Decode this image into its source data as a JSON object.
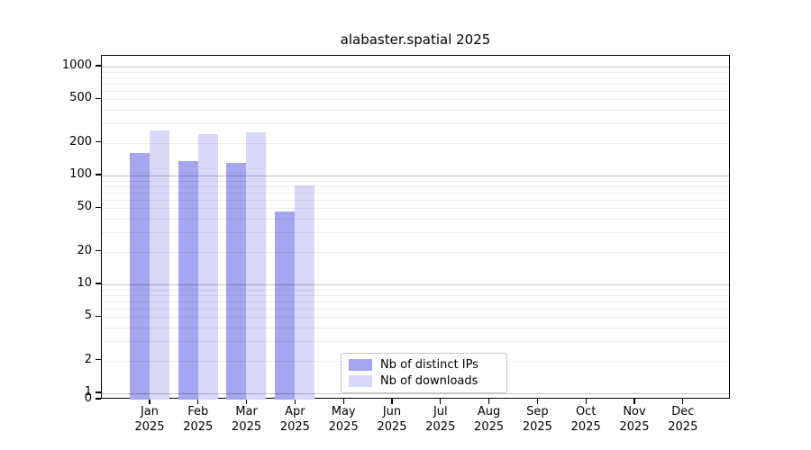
{
  "chart_data": {
    "type": "bar",
    "title": "alabaster.spatial 2025",
    "categories": [
      "Jan",
      "Feb",
      "Mar",
      "Apr",
      "May",
      "Jun",
      "Jul",
      "Aug",
      "Sep",
      "Oct",
      "Nov",
      "Dec"
    ],
    "year_label": "2025",
    "series": [
      {
        "name": "Nb of distinct IPs",
        "color": "#a5a5f0",
        "values": [
          160,
          135,
          130,
          47,
          null,
          null,
          null,
          null,
          null,
          null,
          null,
          null
        ]
      },
      {
        "name": "Nb of downloads",
        "color": "#d8d8f9",
        "values": [
          260,
          240,
          250,
          81,
          null,
          null,
          null,
          null,
          null,
          null,
          null,
          null
        ]
      }
    ],
    "xlabel": "",
    "ylabel": "",
    "yscale": "log",
    "y_ticks": [
      0,
      1,
      2,
      5,
      10,
      20,
      50,
      100,
      200,
      500,
      1000
    ],
    "ylim": [
      0,
      1260
    ],
    "grid": true,
    "legend_position": "bottom-center-inside"
  },
  "colors": {
    "spine": "#000000",
    "grid_major": "#c3c3c3",
    "grid_minor": "#ededed",
    "background": "#ffffff"
  }
}
